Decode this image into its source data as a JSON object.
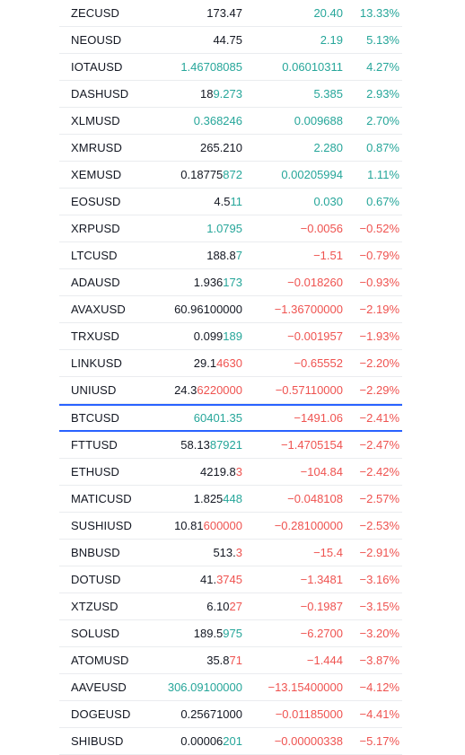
{
  "colors": {
    "up": "#26a69a",
    "down": "#ef5350",
    "neutral": "#131722",
    "selected_border": "#2962ff"
  },
  "watchlist": {
    "rows": [
      {
        "symbol": "ZECUSD",
        "last_a": "173.47",
        "last_b": "",
        "last_b_dir": "neutral",
        "chg": "20.40",
        "chg_pct": "13.33%",
        "dir": "up"
      },
      {
        "symbol": "NEOUSD",
        "last_a": "44.75",
        "last_b": "",
        "last_b_dir": "neutral",
        "chg": "2.19",
        "chg_pct": "5.13%",
        "dir": "up"
      },
      {
        "symbol": "IOTAUSD",
        "last_a": "",
        "last_b": "1.46708085",
        "last_b_dir": "up",
        "chg": "0.06010311",
        "chg_pct": "4.27%",
        "dir": "up"
      },
      {
        "symbol": "DASHUSD",
        "last_a": "18",
        "last_b": "9.273",
        "last_b_dir": "up",
        "chg": "5.385",
        "chg_pct": "2.93%",
        "dir": "up"
      },
      {
        "symbol": "XLMUSD",
        "last_a": "",
        "last_b": "0.368246",
        "last_b_dir": "up",
        "chg": "0.009688",
        "chg_pct": "2.70%",
        "dir": "up"
      },
      {
        "symbol": "XMRUSD",
        "last_a": "265.210",
        "last_b": "",
        "last_b_dir": "neutral",
        "chg": "2.280",
        "chg_pct": "0.87%",
        "dir": "up"
      },
      {
        "symbol": "XEMUSD",
        "last_a": "0.18775",
        "last_b": "872",
        "last_b_dir": "up",
        "chg": "0.00205994",
        "chg_pct": "1.11%",
        "dir": "up"
      },
      {
        "symbol": "EOSUSD",
        "last_a": "4.5",
        "last_b": "11",
        "last_b_dir": "up",
        "chg": "0.030",
        "chg_pct": "0.67%",
        "dir": "up"
      },
      {
        "symbol": "XRPUSD",
        "last_a": "",
        "last_b": "1.0795",
        "last_b_dir": "up",
        "chg": "−0.0056",
        "chg_pct": "−0.52%",
        "dir": "down"
      },
      {
        "symbol": "LTCUSD",
        "last_a": "188.8",
        "last_b": "7",
        "last_b_dir": "up",
        "chg": "−1.51",
        "chg_pct": "−0.79%",
        "dir": "down"
      },
      {
        "symbol": "ADAUSD",
        "last_a": "1.936",
        "last_b": "173",
        "last_b_dir": "up",
        "chg": "−0.018260",
        "chg_pct": "−0.93%",
        "dir": "down"
      },
      {
        "symbol": "AVAXUSD",
        "last_a": "60.96100000",
        "last_b": "",
        "last_b_dir": "neutral",
        "chg": "−1.36700000",
        "chg_pct": "−2.19%",
        "dir": "down"
      },
      {
        "symbol": "TRXUSD",
        "last_a": "0.099",
        "last_b": "189",
        "last_b_dir": "up",
        "chg": "−0.001957",
        "chg_pct": "−1.93%",
        "dir": "down"
      },
      {
        "symbol": "LINKUSD",
        "last_a": "29.1",
        "last_b": "4630",
        "last_b_dir": "down",
        "chg": "−0.65552",
        "chg_pct": "−2.20%",
        "dir": "down"
      },
      {
        "symbol": "UNIUSD",
        "last_a": "24.3",
        "last_b": "6220000",
        "last_b_dir": "down",
        "chg": "−0.57110000",
        "chg_pct": "−2.29%",
        "dir": "down"
      },
      {
        "symbol": "BTCUSD",
        "last_a": "",
        "last_b": "60401.35",
        "last_b_dir": "up",
        "chg": "−1491.06",
        "chg_pct": "−2.41%",
        "dir": "down",
        "selected": true
      },
      {
        "symbol": "FTTUSD",
        "last_a": "58.13",
        "last_b": "87921",
        "last_b_dir": "up",
        "chg": "−1.4705154",
        "chg_pct": "−2.47%",
        "dir": "down"
      },
      {
        "symbol": "ETHUSD",
        "last_a": "4219.8",
        "last_b": "3",
        "last_b_dir": "down",
        "chg": "−104.84",
        "chg_pct": "−2.42%",
        "dir": "down"
      },
      {
        "symbol": "MATICUSD",
        "last_a": "1.825",
        "last_b": "448",
        "last_b_dir": "up",
        "chg": "−0.048108",
        "chg_pct": "−2.57%",
        "dir": "down"
      },
      {
        "symbol": "SUSHIUSD",
        "last_a": "10.81",
        "last_b": "600000",
        "last_b_dir": "down",
        "chg": "−0.28100000",
        "chg_pct": "−2.53%",
        "dir": "down"
      },
      {
        "symbol": "BNBUSD",
        "last_a": "513.",
        "last_b": "3",
        "last_b_dir": "down",
        "chg": "−15.4",
        "chg_pct": "−2.91%",
        "dir": "down"
      },
      {
        "symbol": "DOTUSD",
        "last_a": "41.",
        "last_b": "3745",
        "last_b_dir": "down",
        "chg": "−1.3481",
        "chg_pct": "−3.16%",
        "dir": "down"
      },
      {
        "symbol": "XTZUSD",
        "last_a": "6.10",
        "last_b": "27",
        "last_b_dir": "down",
        "chg": "−0.1987",
        "chg_pct": "−3.15%",
        "dir": "down"
      },
      {
        "symbol": "SOLUSD",
        "last_a": "189.5",
        "last_b": "975",
        "last_b_dir": "up",
        "chg": "−6.2700",
        "chg_pct": "−3.20%",
        "dir": "down"
      },
      {
        "symbol": "ATOMUSD",
        "last_a": "35.8",
        "last_b": "71",
        "last_b_dir": "down",
        "chg": "−1.444",
        "chg_pct": "−3.87%",
        "dir": "down"
      },
      {
        "symbol": "AAVEUSD",
        "last_a": "",
        "last_b": "306.09100000",
        "last_b_dir": "up",
        "chg": "−13.15400000",
        "chg_pct": "−4.12%",
        "dir": "down"
      },
      {
        "symbol": "DOGEUSD",
        "last_a": "0.25671000",
        "last_b": "",
        "last_b_dir": "neutral",
        "chg": "−0.01185000",
        "chg_pct": "−4.41%",
        "dir": "down"
      },
      {
        "symbol": "SHIBUSD",
        "last_a": "0.00006",
        "last_b": "201",
        "last_b_dir": "up",
        "chg": "−0.00000338",
        "chg_pct": "−5.17%",
        "dir": "down"
      }
    ]
  }
}
